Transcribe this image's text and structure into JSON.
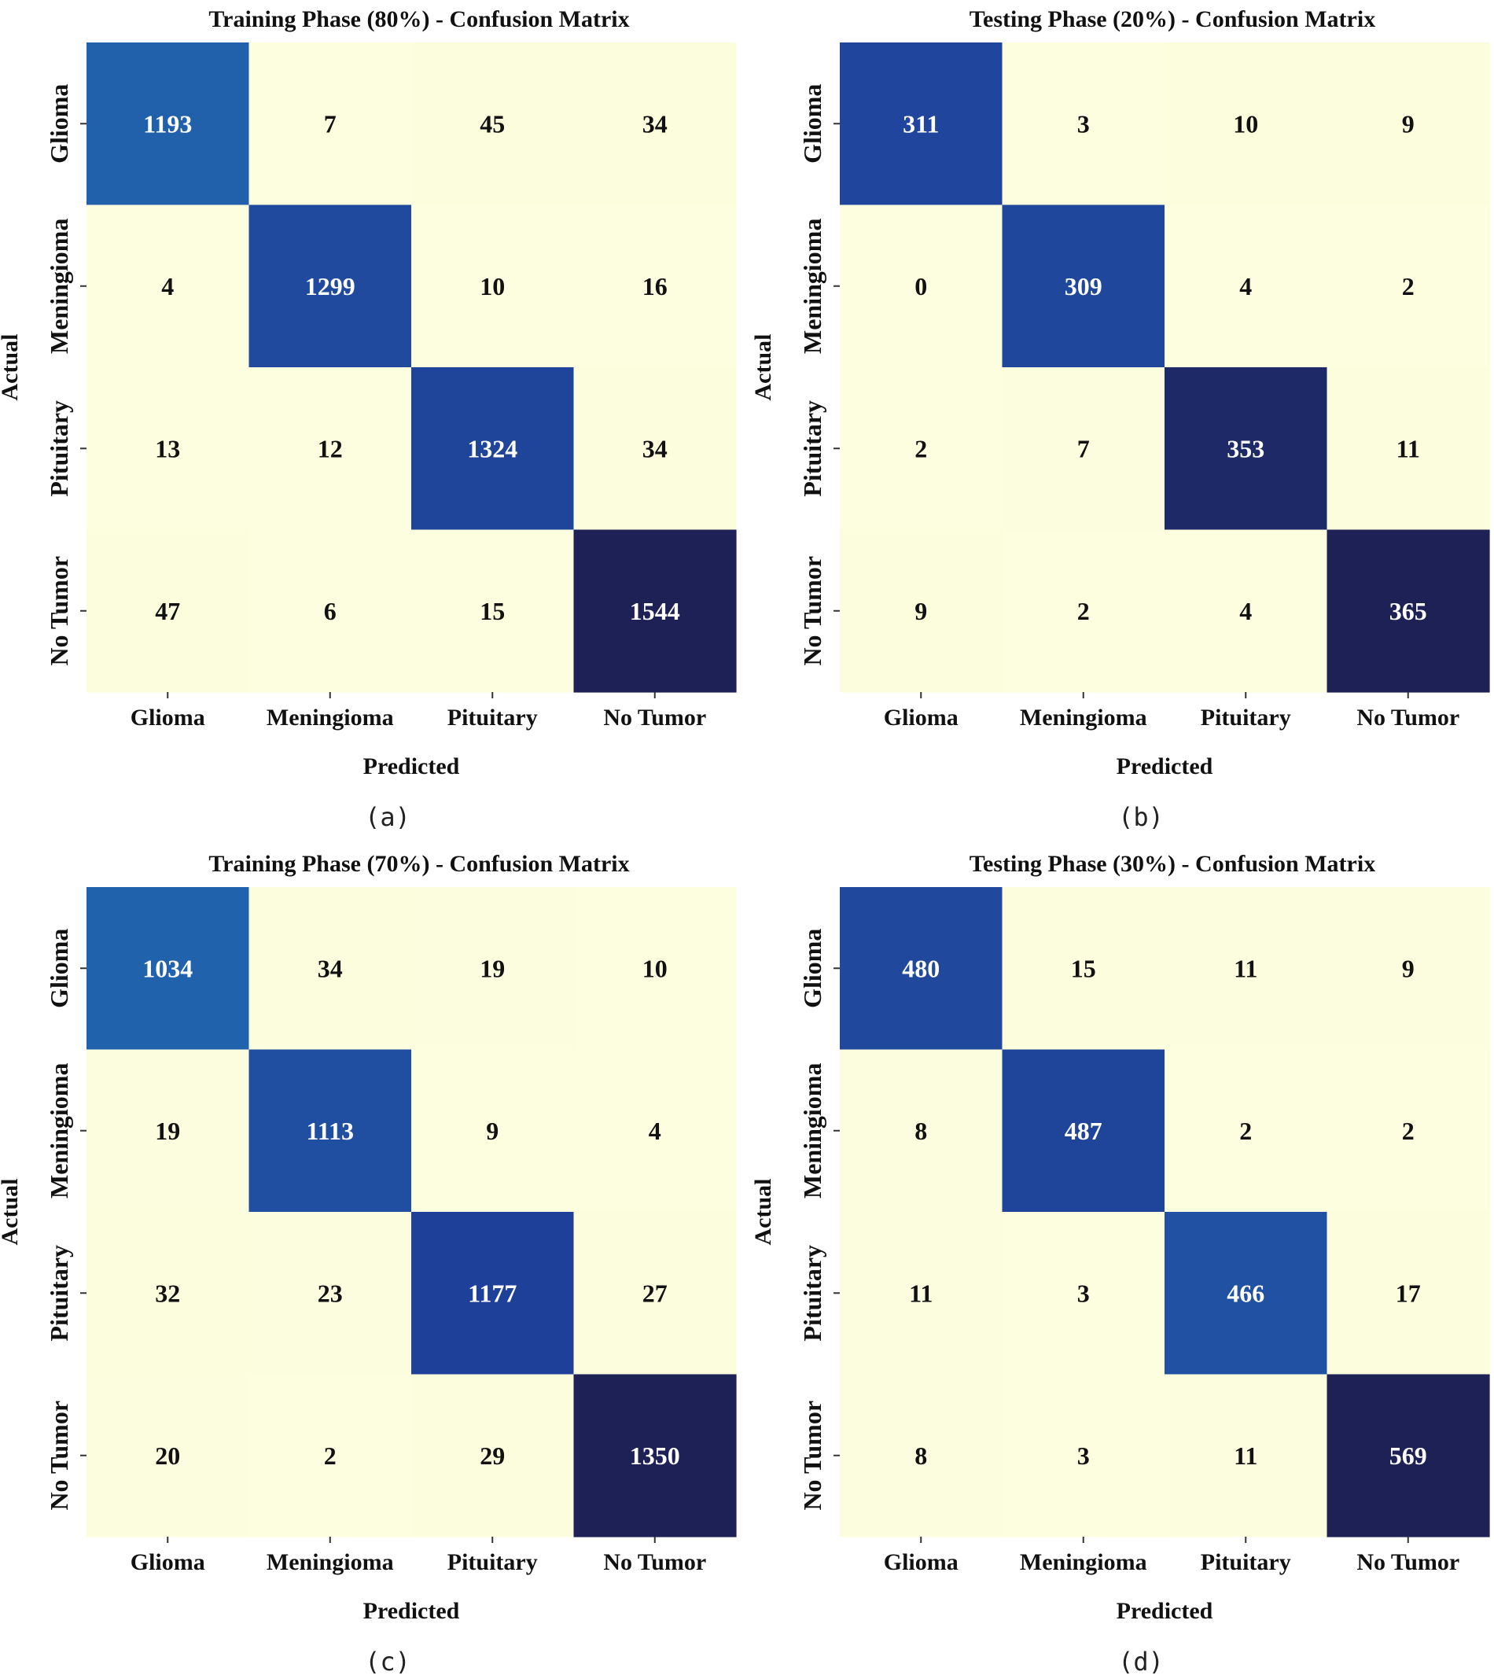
{
  "colors": {
    "scale": [
      "#fdfde0",
      "#f8fbd0",
      "#e4f4b6",
      "#b9e3b5",
      "#79c9bb",
      "#3ea9c3",
      "#2167b0",
      "#1f3f97",
      "#1e2156"
    ],
    "text_dark": "#111111",
    "text_light": "#ffffff"
  },
  "chart_data": [
    {
      "type": "heatmap",
      "panel": "a",
      "caption": "(a)",
      "title": "Training Phase (80%) - Confusion Matrix",
      "xlabel": "Predicted",
      "ylabel": "Actual",
      "categories": [
        "Glioma",
        "Meningioma",
        "Pituitary",
        "No Tumor"
      ],
      "values": [
        [
          1193,
          7,
          45,
          34
        ],
        [
          4,
          1299,
          10,
          16
        ],
        [
          13,
          12,
          1324,
          34
        ],
        [
          47,
          6,
          15,
          1544
        ]
      ]
    },
    {
      "type": "heatmap",
      "panel": "b",
      "caption": "(b)",
      "title": "Testing Phase (20%) - Confusion Matrix",
      "xlabel": "Predicted",
      "ylabel": "Actual",
      "categories": [
        "Glioma",
        "Meningioma",
        "Pituitary",
        "No Tumor"
      ],
      "values": [
        [
          311,
          3,
          10,
          9
        ],
        [
          0,
          309,
          4,
          2
        ],
        [
          2,
          7,
          353,
          11
        ],
        [
          9,
          2,
          4,
          365
        ]
      ]
    },
    {
      "type": "heatmap",
      "panel": "c",
      "caption": "(c)",
      "title": "Training Phase (70%) - Confusion Matrix",
      "xlabel": "Predicted",
      "ylabel": "Actual",
      "categories": [
        "Glioma",
        "Meningioma",
        "Pituitary",
        "No Tumor"
      ],
      "values": [
        [
          1034,
          34,
          19,
          10
        ],
        [
          19,
          1113,
          9,
          4
        ],
        [
          32,
          23,
          1177,
          27
        ],
        [
          20,
          2,
          29,
          1350
        ]
      ]
    },
    {
      "type": "heatmap",
      "panel": "d",
      "caption": "(d)",
      "title": "Testing Phase (30%) - Confusion Matrix",
      "xlabel": "Predicted",
      "ylabel": "Actual",
      "categories": [
        "Glioma",
        "Meningioma",
        "Pituitary",
        "No Tumor"
      ],
      "values": [
        [
          480,
          15,
          11,
          9
        ],
        [
          8,
          487,
          2,
          2
        ],
        [
          11,
          3,
          466,
          17
        ],
        [
          8,
          3,
          11,
          569
        ]
      ]
    }
  ]
}
